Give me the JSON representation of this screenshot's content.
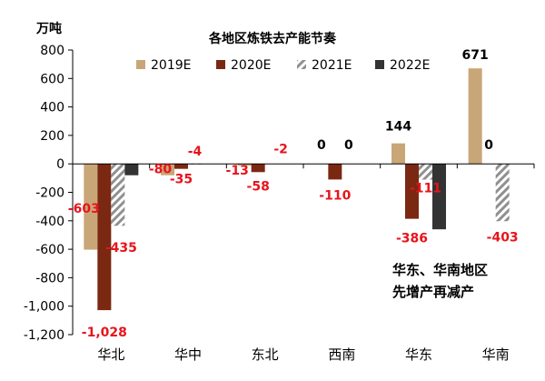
{
  "chart_data": {
    "type": "bar",
    "title": "各地区炼铁去产能节奏",
    "unit": "万吨",
    "categories": [
      "华北",
      "华中",
      "东北",
      "西南",
      "华东",
      "华南"
    ],
    "series": [
      {
        "name": "2019E",
        "values": [
          -603,
          -80,
          -13,
          0,
          144,
          671
        ],
        "color": "#C9A677",
        "pattern": "solid"
      },
      {
        "name": "2020E",
        "values": [
          -1028,
          -35,
          -58,
          -110,
          -386,
          0
        ],
        "color": "#7B2812",
        "pattern": "solid"
      },
      {
        "name": "2021E",
        "values": [
          -435,
          -4,
          -2,
          0,
          -111,
          -403
        ],
        "color": "#909090",
        "pattern": "hatch"
      },
      {
        "name": "2022E",
        "values": [
          -80,
          0,
          0,
          0,
          -460,
          0
        ],
        "color": "#333333",
        "pattern": "solid"
      }
    ],
    "yticks": [
      "800",
      "600",
      "400",
      "200",
      "0",
      "-200",
      "-400",
      "-600",
      "-800",
      "-1,000",
      "-1,200"
    ],
    "ylim": [
      -1200,
      800
    ],
    "legend_position": "top",
    "grid": false,
    "data_labels": [
      {
        "text": "-603",
        "category": "华北",
        "series": "2019E",
        "color": "#E8141C"
      },
      {
        "text": "-1,028",
        "category": "华北",
        "series": "2020E",
        "color": "#E8141C"
      },
      {
        "text": "-435",
        "category": "华北",
        "series": "2021E",
        "color": "#E8141C"
      },
      {
        "text": "-80",
        "category": "华中",
        "series": "2019E",
        "color": "#E8141C"
      },
      {
        "text": "-35",
        "category": "华中",
        "series": "2020E",
        "color": "#E8141C"
      },
      {
        "text": "-4",
        "category": "华中",
        "series": "2021E",
        "color": "#E8141C"
      },
      {
        "text": "-13",
        "category": "东北",
        "series": "2019E",
        "color": "#E8141C"
      },
      {
        "text": "-58",
        "category": "东北",
        "series": "2020E",
        "color": "#E8141C"
      },
      {
        "text": "-2",
        "category": "东北",
        "series": "2021E",
        "color": "#E8141C"
      },
      {
        "text": "0",
        "category": "西南",
        "series": "2019E",
        "color": "#000000"
      },
      {
        "text": "-110",
        "category": "西南",
        "series": "2020E",
        "color": "#E8141C"
      },
      {
        "text": "0",
        "category": "西南",
        "series": "2021E",
        "color": "#000000"
      },
      {
        "text": "144",
        "category": "华东",
        "series": "2019E",
        "color": "#000000"
      },
      {
        "text": "-386",
        "category": "华东",
        "series": "2020E",
        "color": "#E8141C"
      },
      {
        "text": "-111",
        "category": "华东",
        "series": "2021E",
        "color": "#E8141C"
      },
      {
        "text": "671",
        "category": "华南",
        "series": "2019E",
        "color": "#000000"
      },
      {
        "text": "0",
        "category": "华南",
        "series": "2020E",
        "color": "#000000"
      },
      {
        "text": "-403",
        "category": "华南",
        "series": "2021E",
        "color": "#E8141C"
      }
    ],
    "annotation": [
      "华东、华南地区",
      "先增产再减产"
    ]
  }
}
